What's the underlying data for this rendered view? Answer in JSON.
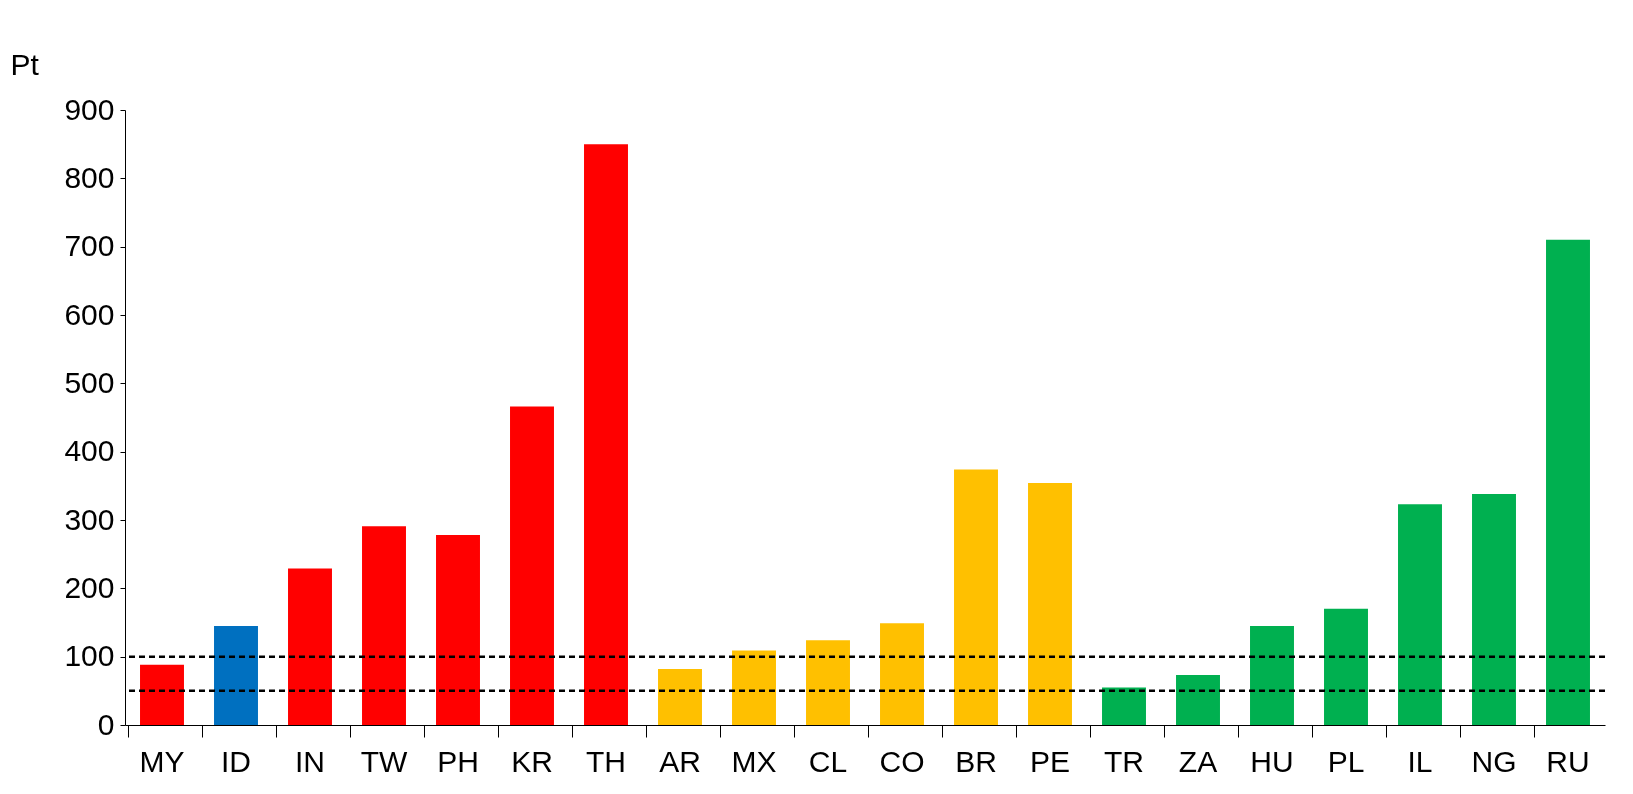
{
  "chart_data": {
    "type": "bar",
    "ylabel": "Pt",
    "categories": [
      "MY",
      "ID",
      "IN",
      "TW",
      "PH",
      "KR",
      "TH",
      "AR",
      "MX",
      "CL",
      "CO",
      "BR",
      "PE",
      "TR",
      "ZA",
      "HU",
      "PL",
      "IL",
      "NG",
      "RU"
    ],
    "values": [
      88,
      145,
      229,
      291,
      278,
      466,
      850,
      82,
      109,
      124,
      149,
      374,
      354,
      55,
      73,
      145,
      170,
      323,
      338,
      710
    ],
    "colors": [
      "#ff0000",
      "#0070c0",
      "#ff0000",
      "#ff0000",
      "#ff0000",
      "#ff0000",
      "#ff0000",
      "#ffc000",
      "#ffc000",
      "#ffc000",
      "#ffc000",
      "#ffc000",
      "#ffc000",
      "#00b050",
      "#00b050",
      "#00b050",
      "#00b050",
      "#00b050",
      "#00b050",
      "#00b050"
    ],
    "ylim": [
      0,
      900
    ],
    "yticks": [
      0,
      100,
      200,
      300,
      400,
      500,
      600,
      700,
      800,
      900
    ],
    "ref_lines": [
      {
        "axis": "y",
        "value": 100,
        "color": "#000000",
        "line_style": "dashed"
      },
      {
        "axis": "y",
        "value": 50,
        "color": "#000000",
        "line_style": "dashed"
      }
    ],
    "grid": false
  }
}
